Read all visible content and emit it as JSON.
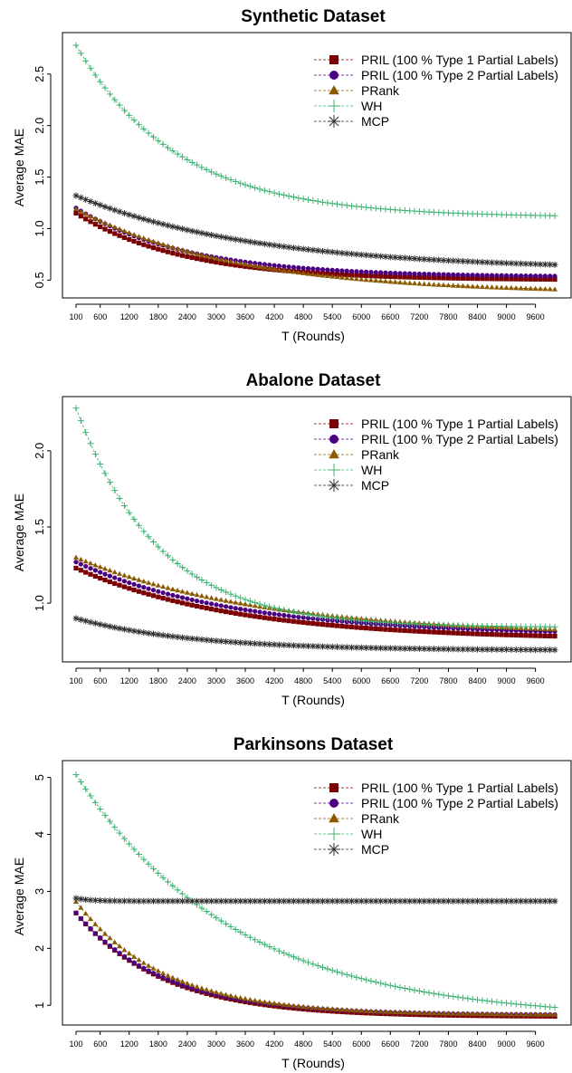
{
  "chart_data": [
    {
      "type": "line",
      "title": "Synthetic Dataset",
      "xlabel": "T (Rounds)",
      "ylabel": "Average MAE",
      "ylim": [
        0.38,
        2.85
      ],
      "yticks": [
        "0.5",
        "1.0",
        "1.5",
        "2.0",
        "2.5"
      ],
      "legend_position": "top-right",
      "series": [
        {
          "name": "PRIL (100 % Type 1 Partial Labels)",
          "color": "#7b0000",
          "marker": "square",
          "start": 1.15,
          "end": 0.5,
          "tau": 2200
        },
        {
          "name": "PRIL (100 % Type 2 Partial Labels)",
          "color": "#4b0082",
          "marker": "circle",
          "start": 1.2,
          "end": 0.53,
          "tau": 2300
        },
        {
          "name": "PRank",
          "color": "#8b5a00",
          "marker": "triangle",
          "start": 1.19,
          "end": 0.37,
          "tau": 3300
        },
        {
          "name": "WH",
          "color": "#3cb371",
          "marker": "plus",
          "start": 2.78,
          "end": 1.11,
          "tau": 2100
        },
        {
          "name": "MCP",
          "color": "#2f2f2f",
          "marker": "star",
          "start": 1.32,
          "end": 0.6,
          "tau": 3700
        }
      ]
    },
    {
      "type": "line",
      "title": "Abalone Dataset",
      "xlabel": "T (Rounds)",
      "ylabel": "Average MAE",
      "ylim": [
        0.65,
        2.32
      ],
      "yticks": [
        "1.0",
        "1.5",
        "2.0"
      ],
      "legend_position": "top-right",
      "series": [
        {
          "name": "PRIL (100 % Type 1 Partial Labels)",
          "color": "#7b0000",
          "marker": "square",
          "start": 1.23,
          "end": 0.76,
          "tau": 3300
        },
        {
          "name": "PRIL (100 % Type 2 Partial Labels)",
          "color": "#4b0082",
          "marker": "circle",
          "start": 1.27,
          "end": 0.79,
          "tau": 3300
        },
        {
          "name": "PRank",
          "color": "#8b5a00",
          "marker": "triangle",
          "start": 1.3,
          "end": 0.79,
          "tau": 3800
        },
        {
          "name": "WH",
          "color": "#3cb371",
          "marker": "plus",
          "start": 2.28,
          "end": 0.84,
          "tau": 1700
        },
        {
          "name": "MCP",
          "color": "#2f2f2f",
          "marker": "star",
          "start": 0.9,
          "end": 0.69,
          "tau": 2400
        }
      ]
    },
    {
      "type": "line",
      "title": "Parkinsons Dataset",
      "xlabel": "T (Rounds)",
      "ylabel": "Average MAE",
      "ylim": [
        0.75,
        5.2
      ],
      "yticks": [
        "1",
        "2",
        "3",
        "4",
        "5"
      ],
      "legend_position": "top-right",
      "series": [
        {
          "name": "PRIL (100 % Type 1 Partial Labels)",
          "color": "#7b0000",
          "marker": "square",
          "start": 2.62,
          "end": 0.8,
          "tau": 1800
        },
        {
          "name": "PRIL (100 % Type 2 Partial Labels)",
          "color": "#4b0082",
          "marker": "circle",
          "start": 2.62,
          "end": 0.83,
          "tau": 1800
        },
        {
          "name": "PRank",
          "color": "#8b5a00",
          "marker": "triangle",
          "start": 2.82,
          "end": 0.83,
          "tau": 1800
        },
        {
          "name": "WH",
          "color": "#3cb371",
          "marker": "plus",
          "start": 5.05,
          "end": 0.75,
          "tau": 3300
        },
        {
          "name": "MCP",
          "color": "#2f2f2f",
          "marker": "star",
          "start": 2.88,
          "end": 2.83,
          "tau": 300
        }
      ]
    }
  ],
  "x_axis": {
    "min": 100,
    "max": 10000,
    "step": 100,
    "ticks": [
      "100",
      "600",
      "1200",
      "1800",
      "2400",
      "3000",
      "3600",
      "4200",
      "4800",
      "5400",
      "6000",
      "6600",
      "7200",
      "7800",
      "8400",
      "9000",
      "9600"
    ]
  }
}
